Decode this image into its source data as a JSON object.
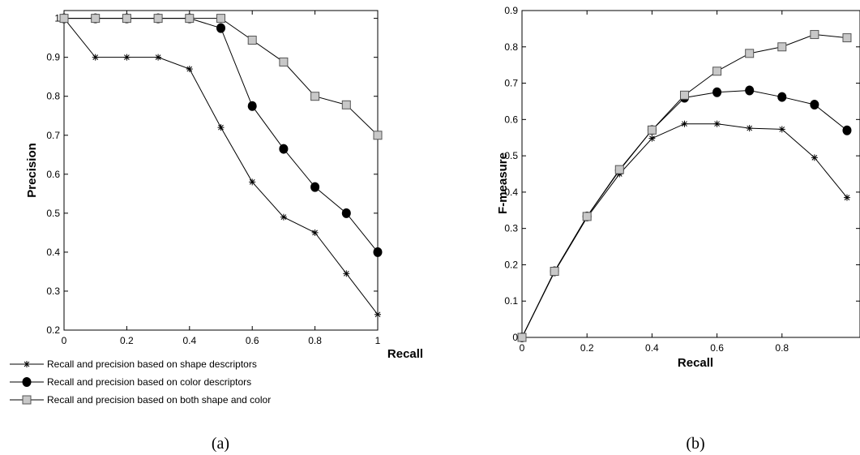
{
  "chart_data": [
    {
      "type": "line",
      "panel_label": "(a)",
      "xlabel": "Recall",
      "ylabel": "Precision",
      "xlim": [
        0,
        1
      ],
      "ylim": [
        0.2,
        1.02
      ],
      "xticks": [
        "0",
        "0.2",
        "0.4",
        "0.6",
        "0.8",
        "1"
      ],
      "yticks": [
        "0.2",
        "0.3",
        "0.4",
        "0.5",
        "0.6",
        "0.7",
        "0.8",
        "0.9",
        "1"
      ],
      "x": [
        0,
        0.1,
        0.2,
        0.3,
        0.4,
        0.5,
        0.6,
        0.7,
        0.8,
        0.9,
        1.0
      ],
      "legend_position": "bottom-left, below plot",
      "series": [
        {
          "name": "Recall and precision based on shape descriptors",
          "marker": "star",
          "values": [
            1.0,
            0.9,
            0.9,
            0.9,
            0.87,
            0.72,
            0.58,
            0.49,
            0.45,
            0.345,
            0.24
          ]
        },
        {
          "name": "Recall and precision based on color descriptors",
          "marker": "filled-circle",
          "values": [
            1.0,
            1.0,
            1.0,
            1.0,
            1.0,
            0.975,
            0.775,
            0.665,
            0.567,
            0.5,
            0.4
          ]
        },
        {
          "name": "Recall and precision based on both shape and color",
          "marker": "gray-square",
          "values": [
            1.0,
            1.0,
            1.0,
            1.0,
            1.0,
            1.0,
            0.944,
            0.888,
            0.8,
            0.778,
            0.7
          ]
        }
      ]
    },
    {
      "type": "line",
      "panel_label": "(b)",
      "xlabel": "Recall",
      "ylabel": "F-measure",
      "xlim": [
        0,
        1.04
      ],
      "ylim": [
        0,
        0.9
      ],
      "xticks": [
        "0",
        "0.2",
        "0.4",
        "0.6",
        "0.8"
      ],
      "yticks": [
        "0",
        "0.1",
        "0.2",
        "0.3",
        "0.4",
        "0.5",
        "0.6",
        "0.7",
        "0.8",
        "0.9"
      ],
      "x": [
        0,
        0.1,
        0.2,
        0.3,
        0.4,
        0.5,
        0.6,
        0.7,
        0.8,
        0.9,
        1.0
      ],
      "series": [
        {
          "name": "Recall and precision based on shape descriptors",
          "marker": "star",
          "values": [
            0,
            0.18,
            0.33,
            0.45,
            0.548,
            0.588,
            0.588,
            0.576,
            0.573,
            0.495,
            0.385
          ]
        },
        {
          "name": "Recall and precision based on color descriptors",
          "marker": "filled-circle",
          "values": [
            0,
            0.182,
            0.333,
            0.46,
            0.571,
            0.66,
            0.675,
            0.68,
            0.662,
            0.641,
            0.57
          ]
        },
        {
          "name": "Recall and precision based on both shape and color",
          "marker": "gray-square",
          "values": [
            0,
            0.182,
            0.333,
            0.462,
            0.571,
            0.667,
            0.733,
            0.782,
            0.8,
            0.834,
            0.825
          ]
        }
      ]
    }
  ]
}
